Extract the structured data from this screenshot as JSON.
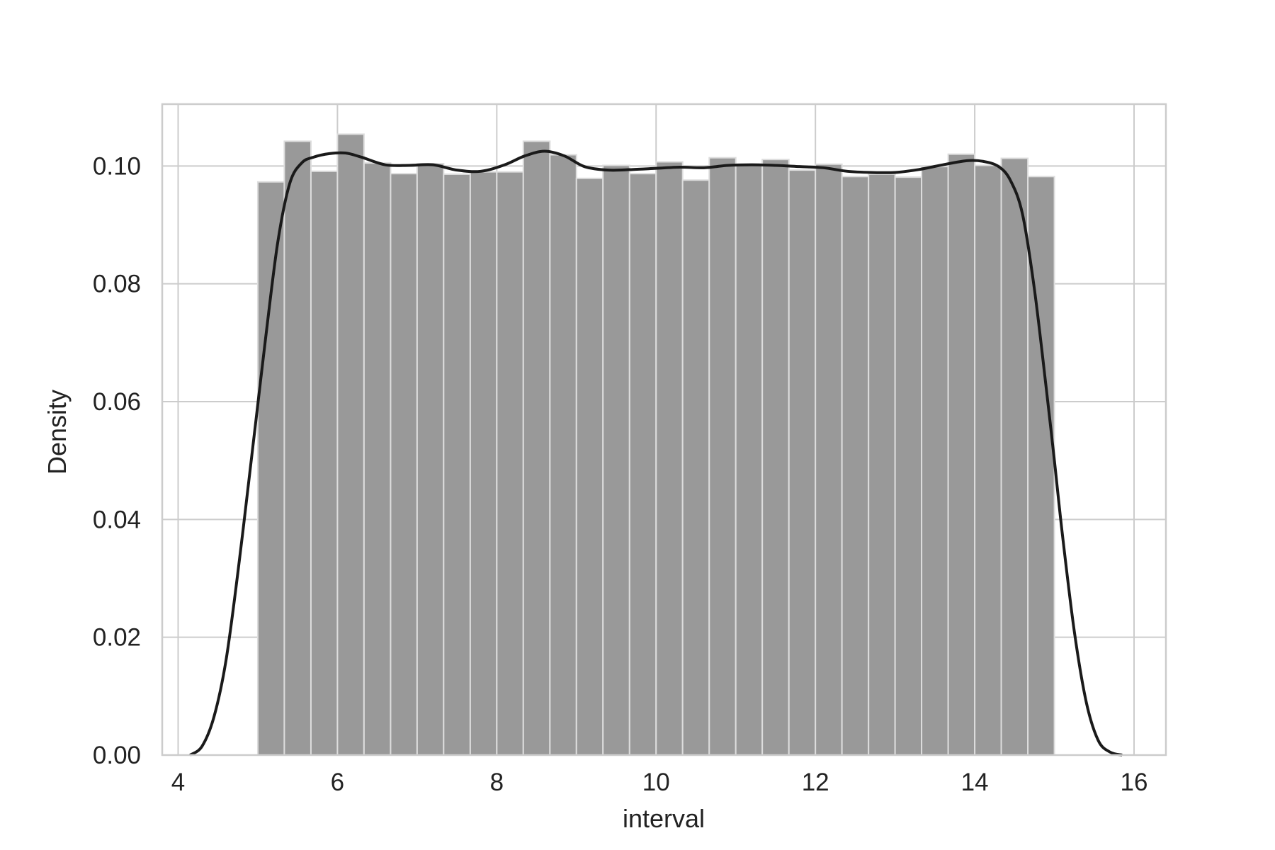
{
  "chart_data": {
    "type": "bar",
    "subtype": "histogram-with-kde",
    "title": "",
    "xlabel": "interval",
    "ylabel": "Density",
    "xlim": [
      3.8,
      16.4
    ],
    "ylim": [
      0,
      0.1105
    ],
    "xticks": [
      4,
      6,
      8,
      10,
      12,
      14,
      16
    ],
    "xtick_labels": [
      "4",
      "6",
      "8",
      "10",
      "12",
      "14",
      "16"
    ],
    "yticks": [
      0,
      0.02,
      0.04,
      0.06,
      0.08,
      0.1
    ],
    "ytick_labels": [
      "0.00",
      "0.02",
      "0.04",
      "0.06",
      "0.08",
      "0.10"
    ],
    "grid": true,
    "bar_color": "#999999",
    "bar_edge_color": "#dddddd",
    "line_color": "#1a1a1a",
    "grid_color": "#cccccc",
    "histogram": {
      "bin_edges": [
        5.0,
        5.333,
        5.667,
        6.0,
        6.333,
        6.667,
        7.0,
        7.333,
        7.667,
        8.0,
        8.333,
        8.667,
        9.0,
        9.333,
        9.667,
        10.0,
        10.333,
        10.667,
        11.0,
        11.333,
        11.667,
        12.0,
        12.333,
        12.667,
        13.0,
        13.333,
        13.667,
        14.0,
        14.333,
        14.667,
        15.0
      ],
      "values": [
        0.0973,
        0.1042,
        0.0991,
        0.1054,
        0.1005,
        0.0987,
        0.1004,
        0.0986,
        0.099,
        0.099,
        0.1042,
        0.1019,
        0.0979,
        0.1001,
        0.0987,
        0.1007,
        0.0976,
        0.1014,
        0.1003,
        0.1011,
        0.0993,
        0.1003,
        0.0982,
        0.0986,
        0.0981,
        0.0999,
        0.102,
        0.1001,
        0.1013,
        0.0982
      ]
    },
    "kde": {
      "x": [
        4.15,
        4.3,
        4.45,
        4.6,
        4.75,
        4.9,
        5.0,
        5.1,
        5.25,
        5.4,
        5.55,
        5.7,
        5.9,
        6.1,
        6.3,
        6.6,
        6.9,
        7.2,
        7.5,
        7.8,
        8.1,
        8.35,
        8.6,
        8.85,
        9.1,
        9.4,
        9.7,
        10.0,
        10.3,
        10.6,
        10.9,
        11.2,
        11.5,
        11.8,
        12.1,
        12.4,
        12.7,
        13.0,
        13.3,
        13.6,
        13.9,
        14.1,
        14.3,
        14.45,
        14.6,
        14.75,
        14.9,
        15.0,
        15.1,
        15.25,
        15.4,
        15.55,
        15.7,
        15.85
      ],
      "y": [
        0.0,
        0.0015,
        0.0065,
        0.016,
        0.031,
        0.048,
        0.0595,
        0.071,
        0.087,
        0.097,
        0.1005,
        0.1015,
        0.1021,
        0.1022,
        0.1015,
        0.1002,
        0.1001,
        0.1002,
        0.0993,
        0.0991,
        0.1002,
        0.1017,
        0.1025,
        0.1017,
        0.0999,
        0.0993,
        0.0994,
        0.0996,
        0.0998,
        0.0997,
        0.1001,
        0.1002,
        0.1001,
        0.0999,
        0.0997,
        0.0991,
        0.0989,
        0.0989,
        0.0994,
        0.1002,
        0.1009,
        0.1008,
        0.0999,
        0.0975,
        0.0918,
        0.079,
        0.062,
        0.05,
        0.0375,
        0.021,
        0.009,
        0.0025,
        0.0005,
        0.0
      ]
    }
  }
}
